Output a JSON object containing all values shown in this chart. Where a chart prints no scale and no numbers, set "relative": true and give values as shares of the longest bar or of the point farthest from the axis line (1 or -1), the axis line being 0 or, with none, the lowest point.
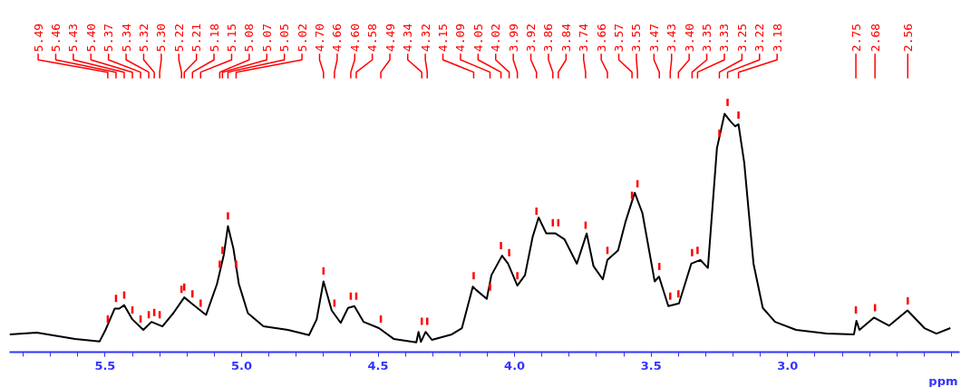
{
  "chart_data": {
    "type": "line",
    "relative": true,
    "xlabel": "ppm",
    "xlim": [
      5.85,
      2.37
    ],
    "xticks": [
      5.5,
      {
        "value": 5.0,
        "label": "5.0"
      },
      4.5,
      {
        "value": 4.0,
        "label": "4.0"
      },
      3.5,
      {
        "value": 3.0,
        "label": "3.0"
      }
    ],
    "grid": false,
    "series": [
      {
        "color": "#000000",
        "x": [
          5.85,
          5.75,
          5.61,
          5.52,
          5.5,
          5.465,
          5.448,
          5.43,
          5.4,
          5.36,
          5.33,
          5.29,
          5.25,
          5.21,
          5.18,
          5.13,
          5.09,
          5.065,
          5.05,
          5.03,
          5.01,
          4.977,
          4.92,
          4.83,
          4.753,
          4.725,
          4.7,
          4.67,
          4.637,
          4.61,
          4.587,
          4.553,
          4.497,
          4.443,
          4.36,
          4.352,
          4.343,
          4.326,
          4.303,
          4.23,
          4.193,
          4.153,
          4.141,
          4.102,
          4.085,
          4.046,
          4.024,
          3.99,
          3.962,
          3.934,
          3.912,
          3.884,
          3.85,
          3.817,
          3.772,
          3.736,
          3.711,
          3.677,
          3.66,
          3.621,
          3.594,
          3.56,
          3.532,
          3.487,
          3.471,
          3.437,
          3.398,
          3.353,
          3.32,
          3.292,
          3.259,
          3.231,
          3.208,
          3.192,
          3.18,
          3.159,
          3.125,
          3.091,
          3.046,
          2.969,
          2.857,
          2.757,
          2.748,
          2.737,
          2.684,
          2.628,
          2.561,
          2.499,
          2.455,
          2.404
        ],
        "values": [
          0.071,
          0.078,
          0.053,
          0.043,
          0.085,
          0.174,
          0.174,
          0.188,
          0.131,
          0.089,
          0.121,
          0.103,
          0.156,
          0.219,
          0.192,
          0.149,
          0.273,
          0.39,
          0.504,
          0.415,
          0.273,
          0.156,
          0.103,
          0.089,
          0.068,
          0.131,
          0.283,
          0.167,
          0.117,
          0.177,
          0.184,
          0.121,
          0.096,
          0.053,
          0.039,
          0.081,
          0.041,
          0.081,
          0.049,
          0.071,
          0.096,
          0.262,
          0.249,
          0.213,
          0.308,
          0.386,
          0.354,
          0.266,
          0.308,
          0.461,
          0.539,
          0.475,
          0.475,
          0.451,
          0.354,
          0.475,
          0.344,
          0.291,
          0.369,
          0.407,
          0.521,
          0.638,
          0.557,
          0.283,
          0.302,
          0.184,
          0.195,
          0.354,
          0.369,
          0.337,
          0.816,
          0.954,
          0.922,
          0.904,
          0.912,
          0.759,
          0.354,
          0.177,
          0.121,
          0.089,
          0.074,
          0.071,
          0.125,
          0.089,
          0.138,
          0.106,
          0.167,
          0.096,
          0.074,
          0.096
        ]
      },
      {
        "type": "scatter",
        "color": "#ff0000",
        "x": [
          5.49,
          5.46,
          5.43,
          5.4,
          5.37,
          5.34,
          5.32,
          5.3,
          5.22,
          5.21,
          5.18,
          5.15,
          5.08,
          5.07,
          5.05,
          5.02,
          4.7,
          4.66,
          4.6,
          4.58,
          4.49,
          4.34,
          4.32,
          4.15,
          4.09,
          4.05,
          4.02,
          3.99,
          3.92,
          3.86,
          3.84,
          3.74,
          3.66,
          3.57,
          3.55,
          3.47,
          3.43,
          3.4,
          3.35,
          3.33,
          3.25,
          3.22,
          3.18,
          2.75,
          2.68,
          2.56
        ],
        "values": [
          0.132,
          0.215,
          0.229,
          0.169,
          0.132,
          0.15,
          0.159,
          0.15,
          0.251,
          0.26,
          0.233,
          0.196,
          0.352,
          0.407,
          0.545,
          0.352,
          0.325,
          0.196,
          0.224,
          0.224,
          0.132,
          0.123,
          0.123,
          0.306,
          0.26,
          0.426,
          0.398,
          0.306,
          0.564,
          0.518,
          0.518,
          0.508,
          0.407,
          0.628,
          0.674,
          0.343,
          0.224,
          0.233,
          0.398,
          0.407,
          0.876,
          1.0,
          0.949,
          0.169,
          0.178,
          0.205
        ]
      }
    ],
    "annotations": [
      {
        "text": "5.49",
        "x": 5.49
      },
      {
        "text": "5.46",
        "x": 5.46
      },
      {
        "text": "5.43",
        "x": 5.43
      },
      {
        "text": "5.40",
        "x": 5.4
      },
      {
        "text": "5.37",
        "x": 5.37
      },
      {
        "text": "5.34",
        "x": 5.34
      },
      {
        "text": "5.32",
        "x": 5.32
      },
      {
        "text": "5.30",
        "x": 5.3
      },
      {
        "text": "5.22",
        "x": 5.22
      },
      {
        "text": "5.21",
        "x": 5.21
      },
      {
        "text": "5.18",
        "x": 5.18
      },
      {
        "text": "5.15",
        "x": 5.15
      },
      {
        "text": "5.08",
        "x": 5.08
      },
      {
        "text": "5.07",
        "x": 5.07
      },
      {
        "text": "5.05",
        "x": 5.05
      },
      {
        "text": "5.02",
        "x": 5.02
      },
      {
        "text": "4.70",
        "x": 4.7
      },
      {
        "text": "4.66",
        "x": 4.66
      },
      {
        "text": "4.60",
        "x": 4.6
      },
      {
        "text": "4.58",
        "x": 4.58
      },
      {
        "text": "4.49",
        "x": 4.49
      },
      {
        "text": "4.34",
        "x": 4.34
      },
      {
        "text": "4.32",
        "x": 4.32
      },
      {
        "text": "4.15",
        "x": 4.15
      },
      {
        "text": "4.09",
        "x": 4.09
      },
      {
        "text": "4.05",
        "x": 4.05
      },
      {
        "text": "4.02",
        "x": 4.02
      },
      {
        "text": "3.99",
        "x": 3.99
      },
      {
        "text": "3.92",
        "x": 3.92
      },
      {
        "text": "3.86",
        "x": 3.86
      },
      {
        "text": "3.84",
        "x": 3.84
      },
      {
        "text": "3.74",
        "x": 3.74
      },
      {
        "text": "3.66",
        "x": 3.66
      },
      {
        "text": "3.57",
        "x": 3.57
      },
      {
        "text": "3.55",
        "x": 3.55
      },
      {
        "text": "3.47",
        "x": 3.47
      },
      {
        "text": "3.43",
        "x": 3.43
      },
      {
        "text": "3.40",
        "x": 3.4
      },
      {
        "text": "3.35",
        "x": 3.35
      },
      {
        "text": "3.33",
        "x": 3.33
      },
      {
        "text": "3.25",
        "x": 3.25
      },
      {
        "text": "3.22",
        "x": 3.22
      },
      {
        "text": "3.18",
        "x": 3.18
      },
      {
        "text": "2.75",
        "x": 2.75
      },
      {
        "text": "2.68",
        "x": 2.68
      },
      {
        "text": "2.56",
        "x": 2.56
      }
    ]
  }
}
